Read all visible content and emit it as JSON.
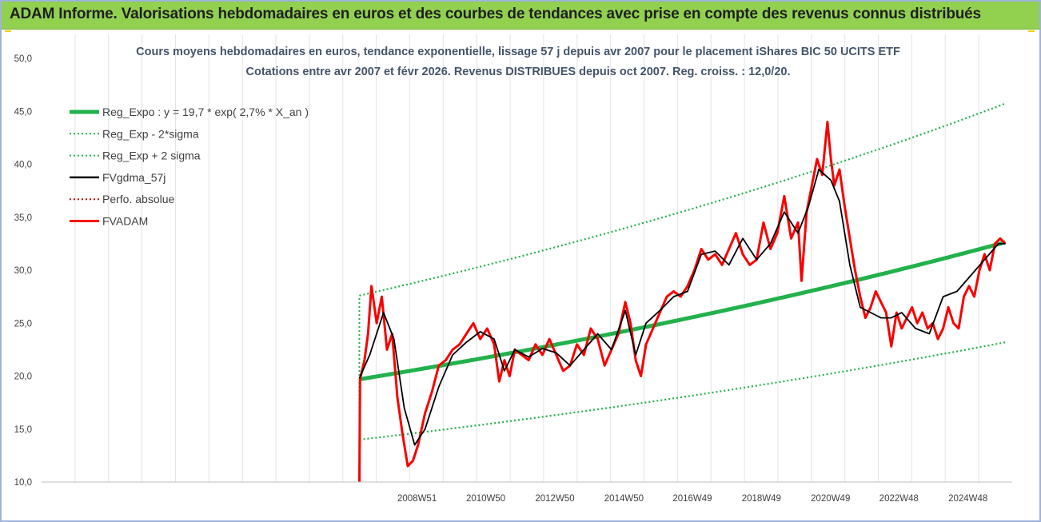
{
  "header": {
    "title": "ADAM Informe. Valorisations hebdomadaires en euros et des courbes de tendances avec prise en compte des revenus connus distribués"
  },
  "colors": {
    "header_bg": "#92d050",
    "reg_expo": "#22b14c",
    "bands": "#22b14c",
    "fvgdma": "#000000",
    "perfo": "#c00000",
    "fvadam": "#ff0000"
  },
  "chart_data": {
    "type": "line",
    "title": "Cours moyens hebdomadaires en euros, tendance exponentielle, lissage 57 j depuis avr 2007 pour le placement iShares BIC 50 UCITS ETF",
    "subtitle": "Cotations entre avr 2007 et févr 2026. Revenus DISTRIBUES depuis oct 2007.  Reg. croiss. : 12,0/20.",
    "xlabel": "",
    "ylabel": "",
    "ylim": [
      10,
      50
    ],
    "yticks": [
      "10,0",
      "15,0",
      "20,0",
      "25,0",
      "30,0",
      "35,0",
      "40,0",
      "45,0",
      "50,0"
    ],
    "xlim": [
      1998.1,
      2026.2
    ],
    "xticks": [
      {
        "x": 2008.97,
        "label": "2008W51"
      },
      {
        "x": 2010.96,
        "label": "2010W50"
      },
      {
        "x": 2012.96,
        "label": "2012W50"
      },
      {
        "x": 2014.96,
        "label": "2014W50"
      },
      {
        "x": 2016.94,
        "label": "2016W49"
      },
      {
        "x": 2018.94,
        "label": "2018W49"
      },
      {
        "x": 2020.94,
        "label": "2020W49"
      },
      {
        "x": 2022.92,
        "label": "2022W48"
      },
      {
        "x": 2024.92,
        "label": "2024W48"
      }
    ],
    "grid": "vertical",
    "legend_position": "top-left",
    "legend": [
      {
        "key": "reg",
        "label": "Reg_Expo : y = 19,7 * exp( 2,7% *  X_an )",
        "style": "thick-solid"
      },
      {
        "key": "low",
        "label": "Reg_Exp - 2*sigma",
        "style": "dotted"
      },
      {
        "key": "high",
        "label": "Reg_Exp + 2 sigma",
        "style": "dotted"
      },
      {
        "key": "fvg",
        "label": "FVgdma_57j",
        "style": "solid"
      },
      {
        "key": "perfo",
        "label": "Perfo. absolue",
        "style": "dotted"
      },
      {
        "key": "fvadam",
        "label": "FVADAM",
        "style": "thick-solid"
      }
    ],
    "regression": {
      "a": 19.7,
      "rate": 0.027,
      "start": 2007.3
    },
    "series": [
      {
        "name": "Reg_Expo : y = 19,7 * exp( 2,7% *  X_an )",
        "x": [
          2007.3,
          2010.0,
          2013.0,
          2016.0,
          2019.0,
          2022.0,
          2026.0
        ],
        "values": [
          19.7,
          21.2,
          23.0,
          25.0,
          27.2,
          29.5,
          33.0
        ]
      },
      {
        "name": "Reg_Exp - 2*sigma",
        "x": [
          2007.3,
          2010.0,
          2013.0,
          2016.0,
          2019.0,
          2022.0,
          2026.0
        ],
        "values": [
          14.0,
          15.1,
          16.4,
          17.8,
          19.4,
          21.0,
          23.5
        ]
      },
      {
        "name": "Reg_Exp + 2 sigma",
        "x": [
          2007.3,
          2010.0,
          2013.0,
          2016.0,
          2019.0,
          2022.0,
          2026.0
        ],
        "values": [
          27.6,
          29.7,
          32.3,
          35.1,
          38.2,
          41.4,
          46.1
        ]
      },
      {
        "name": "FVgdma_57j",
        "x": [
          2007.3,
          2007.6,
          2008.0,
          2008.3,
          2008.6,
          2008.9,
          2009.2,
          2009.6,
          2010.0,
          2010.4,
          2010.8,
          2011.2,
          2011.5,
          2011.8,
          2012.2,
          2012.6,
          2013.0,
          2013.4,
          2013.8,
          2014.2,
          2014.6,
          2015.0,
          2015.3,
          2015.6,
          2016.0,
          2016.4,
          2016.8,
          2017.2,
          2017.6,
          2018.0,
          2018.4,
          2018.8,
          2019.2,
          2019.6,
          2020.0,
          2020.3,
          2020.6,
          2020.95,
          2021.2,
          2021.5,
          2021.8,
          2022.1,
          2022.4,
          2022.7,
          2023.0,
          2023.4,
          2023.8,
          2024.2,
          2024.6,
          2025.0,
          2025.4,
          2025.8,
          2026.0
        ],
        "values": [
          19.8,
          22.0,
          26.0,
          23.5,
          17.0,
          13.5,
          15.0,
          19.0,
          22.0,
          23.2,
          24.2,
          23.5,
          20.5,
          22.5,
          21.8,
          22.6,
          22.2,
          21.0,
          22.5,
          24.0,
          22.5,
          26.2,
          22.0,
          25.0,
          26.2,
          27.5,
          28.0,
          31.5,
          31.8,
          30.5,
          33.0,
          31.0,
          32.5,
          35.5,
          33.5,
          36.0,
          39.5,
          38.5,
          36.5,
          30.5,
          26.5,
          26.0,
          25.5,
          25.5,
          26.0,
          24.5,
          24.0,
          27.5,
          28.0,
          29.5,
          31.0,
          32.5,
          32.5
        ]
      },
      {
        "name": "FVADAM",
        "x": [
          2007.3,
          2007.32,
          2007.45,
          2007.55,
          2007.65,
          2007.8,
          2007.95,
          2008.1,
          2008.25,
          2008.4,
          2008.55,
          2008.7,
          2008.85,
          2009.0,
          2009.2,
          2009.4,
          2009.6,
          2009.8,
          2010.0,
          2010.2,
          2010.4,
          2010.6,
          2010.8,
          2011.0,
          2011.2,
          2011.35,
          2011.5,
          2011.65,
          2011.8,
          2012.0,
          2012.2,
          2012.4,
          2012.6,
          2012.8,
          2013.0,
          2013.2,
          2013.4,
          2013.6,
          2013.8,
          2014.0,
          2014.2,
          2014.4,
          2014.6,
          2014.8,
          2015.0,
          2015.15,
          2015.3,
          2015.45,
          2015.6,
          2015.8,
          2016.0,
          2016.2,
          2016.4,
          2016.6,
          2016.8,
          2017.0,
          2017.2,
          2017.4,
          2017.6,
          2017.8,
          2018.0,
          2018.2,
          2018.4,
          2018.6,
          2018.8,
          2019.0,
          2019.2,
          2019.4,
          2019.6,
          2019.8,
          2020.0,
          2020.1,
          2020.25,
          2020.4,
          2020.55,
          2020.7,
          2020.85,
          2020.95,
          2021.05,
          2021.2,
          2021.35,
          2021.5,
          2021.65,
          2021.8,
          2021.95,
          2022.1,
          2022.25,
          2022.4,
          2022.55,
          2022.7,
          2022.85,
          2023.0,
          2023.15,
          2023.3,
          2023.45,
          2023.6,
          2023.75,
          2023.9,
          2024.05,
          2024.2,
          2024.35,
          2024.5,
          2024.65,
          2024.8,
          2024.95,
          2025.1,
          2025.25,
          2025.4,
          2025.55,
          2025.7,
          2025.85,
          2026.0
        ],
        "values": [
          10.0,
          19.7,
          21.5,
          24.0,
          28.5,
          25.0,
          27.5,
          22.5,
          24.0,
          18.0,
          14.5,
          11.5,
          12.0,
          13.5,
          16.5,
          18.5,
          21.0,
          21.5,
          22.5,
          23.0,
          24.0,
          25.0,
          23.5,
          24.5,
          23.0,
          19.5,
          21.5,
          20.0,
          22.5,
          22.0,
          21.5,
          23.0,
          22.0,
          23.5,
          22.0,
          20.5,
          21.0,
          23.0,
          22.0,
          24.5,
          23.5,
          21.0,
          22.5,
          24.0,
          27.0,
          25.0,
          21.5,
          20.0,
          23.0,
          24.5,
          26.0,
          27.5,
          28.0,
          27.5,
          28.5,
          30.0,
          32.0,
          31.0,
          31.5,
          30.5,
          32.0,
          33.5,
          31.5,
          30.5,
          31.0,
          34.5,
          32.0,
          33.5,
          37.0,
          33.0,
          34.5,
          29.0,
          35.5,
          38.0,
          40.5,
          39.0,
          44.0,
          40.5,
          38.0,
          39.5,
          36.0,
          33.0,
          30.0,
          27.5,
          25.5,
          26.5,
          28.0,
          27.0,
          26.0,
          22.8,
          26.0,
          24.5,
          25.5,
          26.5,
          25.0,
          26.0,
          24.5,
          25.0,
          23.5,
          24.5,
          26.5,
          25.0,
          24.5,
          27.5,
          28.5,
          27.5,
          30.0,
          31.5,
          30.0,
          32.5,
          33.0,
          32.5
        ]
      }
    ]
  }
}
